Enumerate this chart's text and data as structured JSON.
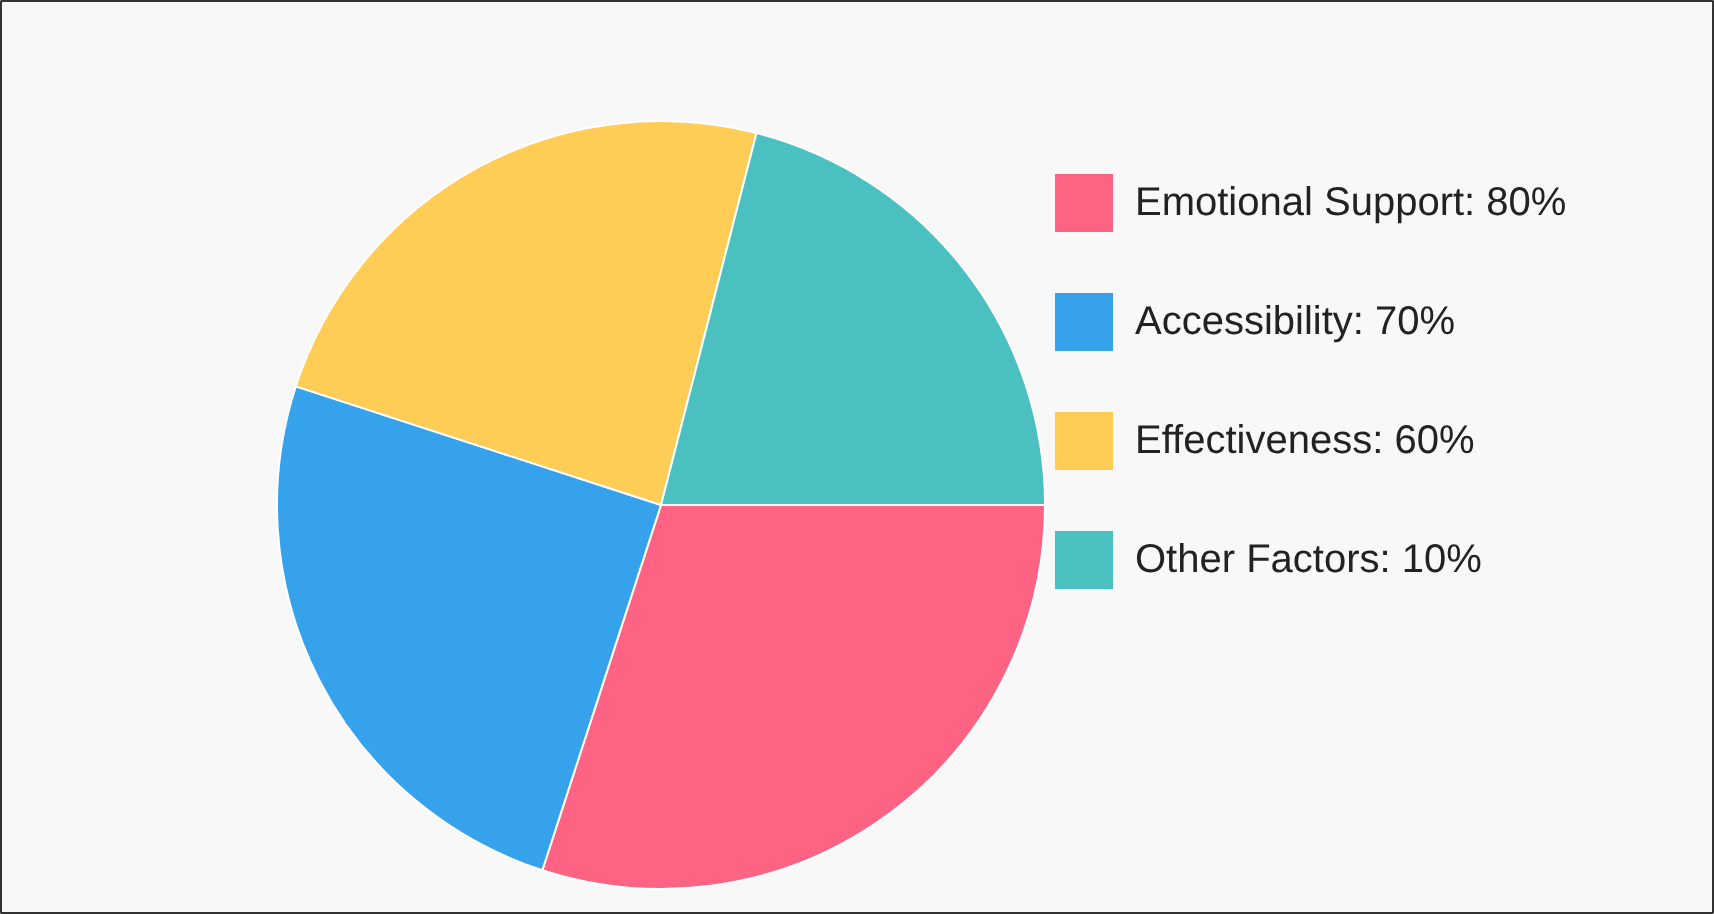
{
  "chart_data": {
    "type": "pie",
    "categories": [
      "Emotional Support: 80%",
      "Accessibility: 70%",
      "Effectiveness: 60%",
      "Other Factors: 10%"
    ],
    "values": [
      30,
      25,
      24,
      21
    ],
    "colors": [
      "#ff6384",
      "#36a2eb",
      "#ffcd56",
      "#4bc0c0"
    ],
    "legend": "right"
  }
}
